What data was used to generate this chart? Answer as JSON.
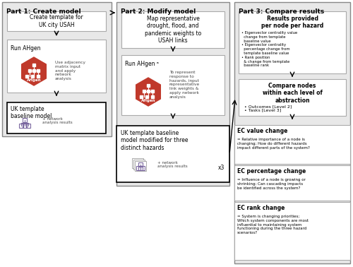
{
  "bg_color": "#ffffff",
  "border_color": "#000000",
  "light_gray": "#d0d0d0",
  "medium_gray": "#b0b0b0",
  "dark_gray": "#808080",
  "red_color": "#c0392b",
  "purple_color": "#7b68a0",
  "text_color": "#000000",
  "gray_text": "#555555",
  "part1_title": "Part 1: Create model",
  "part2_title": "Part 2: Modify model",
  "part3_title": "Part 3: Compare results",
  "p1_box1": "Create template for\nUK city USAH",
  "p1_box2_title": "Run AHgen",
  "p1_box2_text": "Use adjacency\nmatrix input\nand apply\nnetwork\nanalysis",
  "p1_box3_title": "UK template\nbaseline model",
  "p1_box3_text": "+ network\nanalysis results",
  "p2_box1": "Map representative\ndrought, flood, and\npandemic weights to\nUSAH links",
  "p2_box2_title": "Run AHgen ᵃ",
  "p2_box2_text": "To represent\nresponse to\nhazards, input\nrepresentative\nlink weights &\napply network\nanalysis",
  "p2_box3_title": "UK template baseline\nmodel modified for three\ndistinct hazards",
  "p2_box3_text": "+ network\nanalysis results",
  "p2_box3_x3": "x3",
  "p3_box1_title": "Results provided\nper node per hazard",
  "p3_box1_bullets": [
    "• Eigenvector centrality value\n  change from template\n  baseline value",
    "• Eigenvector centrality\n  percentage change from\n  template baseline value",
    "• Rank position\n  & change from template\n  baseline rank"
  ],
  "p3_box2_title": "Compare nodes\nwithin each level of\nabstraction",
  "p3_box2_bullets": [
    "• Outcomes [Level 2]",
    "• Tasks [Level 3]"
  ],
  "p3_ec_title1": "EC value change",
  "p3_ec_text1": "= Relative importance of a node is\nchanging; How do different hazards\nimpact different parts of the system?",
  "p3_ec_title2": "EC percentage change",
  "p3_ec_text2": "= Influence of a node is growing or\nshrinking; Can cascading impacts\nbe identified across the system?",
  "p3_ec_title3": "EC rank change",
  "p3_ec_text3": "= System is changing priorities;\nWhich system components are most\ninfluential to maintaining system\nfunctioning during the three hazard\nscenarios?"
}
